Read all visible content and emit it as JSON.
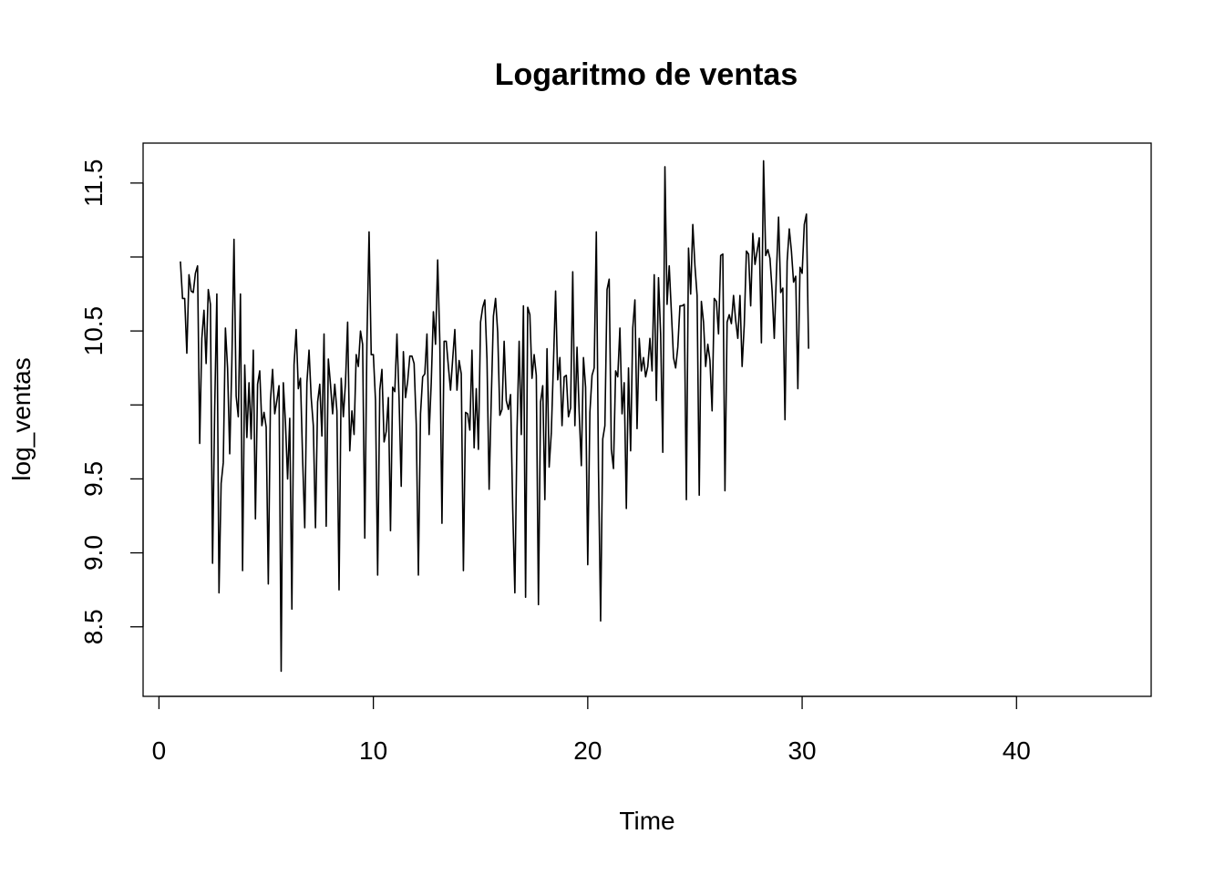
{
  "chart_data": {
    "type": "line",
    "title": "Logaritmo de ventas",
    "xlabel": "Time",
    "ylabel": "log_ventas",
    "xlim": [
      -0.74,
      46.28
    ],
    "ylim": [
      8.03,
      11.77
    ],
    "x_ticks": [
      0,
      10,
      20,
      30,
      40
    ],
    "y_ticks": [
      8.5,
      9.0,
      9.5,
      10.5,
      11.5
    ],
    "y_tick_labels": [
      "8.5",
      "9.0",
      "9.5",
      "10.5",
      "11.5"
    ],
    "y_minor_ticks": [
      10.0,
      11.0
    ],
    "grid": false,
    "x_start": 1,
    "x_step": 0.1,
    "series": [
      {
        "name": "",
        "color": "#000000",
        "values": [
          10.97,
          10.72,
          10.72,
          10.35,
          10.88,
          10.77,
          10.76,
          10.89,
          10.94,
          9.74,
          10.45,
          10.64,
          10.28,
          10.78,
          10.68,
          8.93,
          9.98,
          10.75,
          8.73,
          9.47,
          9.61,
          10.52,
          10.25,
          9.67,
          10.29,
          11.12,
          10.06,
          9.92,
          10.75,
          8.88,
          10.27,
          9.78,
          10.15,
          9.77,
          10.37,
          9.23,
          10.14,
          10.23,
          9.86,
          9.95,
          9.85,
          8.79,
          10.03,
          10.24,
          9.94,
          10.03,
          10.13,
          8.2,
          10.15,
          9.88,
          9.5,
          9.91,
          8.62,
          10.27,
          10.51,
          10.11,
          10.18,
          9.64,
          9.17,
          10.15,
          10.37,
          10.05,
          9.86,
          9.17,
          10.02,
          10.14,
          9.79,
          10.48,
          9.18,
          10.31,
          10.14,
          9.94,
          10.14,
          9.96,
          8.75,
          10.18,
          9.92,
          10.15,
          10.56,
          9.69,
          9.96,
          9.8,
          10.34,
          10.26,
          10.5,
          10.41,
          9.1,
          10.43,
          11.17,
          10.34,
          10.34,
          10.03,
          8.85,
          10.1,
          10.24,
          9.75,
          9.82,
          10.05,
          9.15,
          10.12,
          10.09,
          10.48,
          10.04,
          9.45,
          10.36,
          10.05,
          10.16,
          10.33,
          10.33,
          10.28,
          9.87,
          8.85,
          9.94,
          10.19,
          10.21,
          10.48,
          9.8,
          10.15,
          10.63,
          10.41,
          10.98,
          10.43,
          9.2,
          10.43,
          10.43,
          10.26,
          10.1,
          10.31,
          10.51,
          10.1,
          10.3,
          10.21,
          8.88,
          9.95,
          9.94,
          9.83,
          10.37,
          9.71,
          10.11,
          9.7,
          10.56,
          10.66,
          10.71,
          10.31,
          9.43,
          10.04,
          10.6,
          10.72,
          10.49,
          9.93,
          9.97,
          10.43,
          10.03,
          9.97,
          10.07,
          9.3,
          8.73,
          9.82,
          10.43,
          9.8,
          10.67,
          8.7,
          10.66,
          10.61,
          10.18,
          10.34,
          10.2,
          8.65,
          10.02,
          10.13,
          9.36,
          10.38,
          9.58,
          9.81,
          10.28,
          10.77,
          10.17,
          10.32,
          9.86,
          10.19,
          10.2,
          9.92,
          9.98,
          10.9,
          9.86,
          10.39,
          9.95,
          9.59,
          10.32,
          10.12,
          8.92,
          9.95,
          10.2,
          10.25,
          11.17,
          9.57,
          8.54,
          9.77,
          9.86,
          10.78,
          10.85,
          9.7,
          9.57,
          10.23,
          10.19,
          10.52,
          9.94,
          10.15,
          9.3,
          10.25,
          9.69,
          10.52,
          10.71,
          9.84,
          10.45,
          10.23,
          10.32,
          10.19,
          10.26,
          10.45,
          10.23,
          10.88,
          10.03,
          10.86,
          10.48,
          9.68,
          11.61,
          10.68,
          10.94,
          10.63,
          10.32,
          10.25,
          10.39,
          10.67,
          10.67,
          10.68,
          9.36,
          11.06,
          10.75,
          11.22,
          10.94,
          10.74,
          9.39,
          10.7,
          10.56,
          10.26,
          10.41,
          10.3,
          9.96,
          10.72,
          10.7,
          10.48,
          11.01,
          11.02,
          9.42,
          10.56,
          10.61,
          10.55,
          10.74,
          10.57,
          10.45,
          10.74,
          10.26,
          10.54,
          11.04,
          11.02,
          10.67,
          11.16,
          10.95,
          11.04,
          11.13,
          10.42,
          11.65,
          11.01,
          11.05,
          10.99,
          10.77,
          10.45,
          10.89,
          11.27,
          10.76,
          10.79,
          9.9,
          10.97,
          11.19,
          11.04,
          10.83,
          10.87,
          10.11,
          10.93,
          10.89,
          11.22,
          11.29,
          10.38
        ]
      }
    ]
  }
}
